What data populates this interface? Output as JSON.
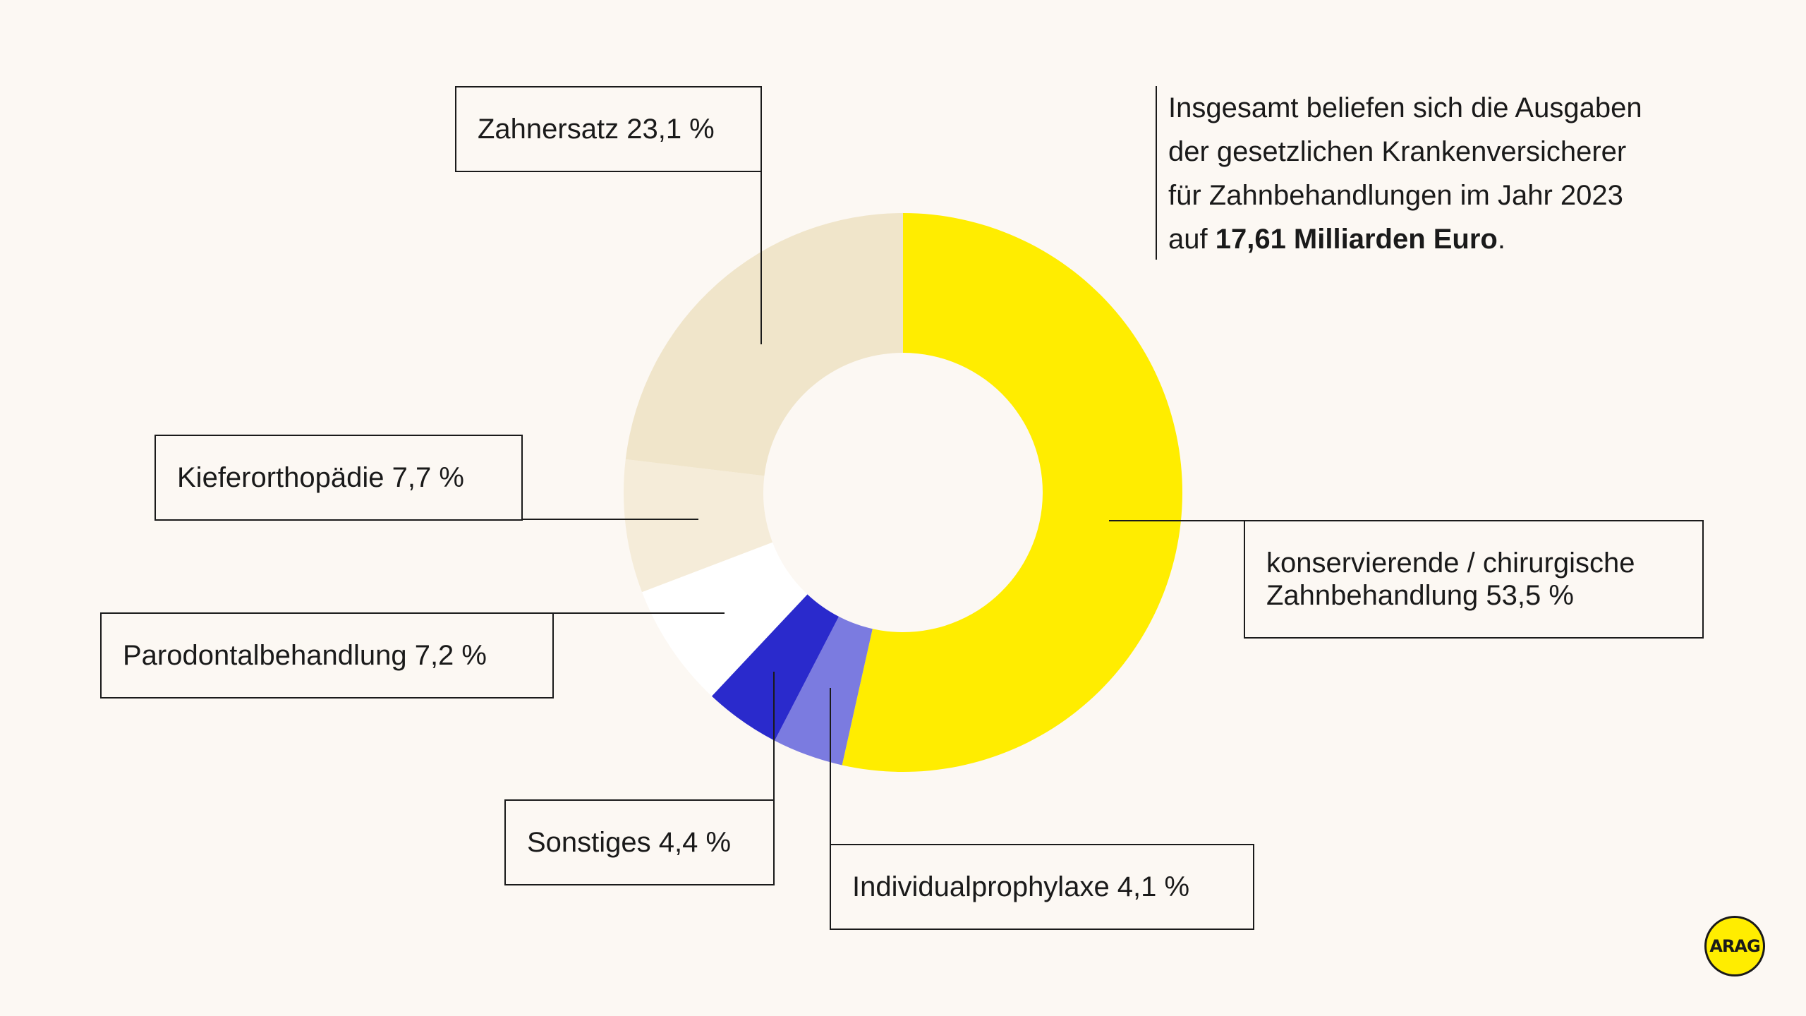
{
  "chart_data": {
    "type": "pie",
    "style": "donut",
    "slices": [
      {
        "label": "konservierende / chirurgische Zahnbehandlung 53,5 %",
        "value": 53.5,
        "color": "#ffed00"
      },
      {
        "label": "Individualprophylaxe 4,1 %",
        "value": 4.1,
        "color": "#7b7be0"
      },
      {
        "label": "Sonstiges 4,4 %",
        "value": 4.4,
        "color": "#2a2acc"
      },
      {
        "label": "Parodontalbehandlung 7,2 %",
        "value": 7.2,
        "color": "#ffffff"
      },
      {
        "label": "Kieferorthopädie 7,7 %",
        "value": 7.7,
        "color": "#f5ecd9"
      },
      {
        "label": "Zahnersatz 23,1 %",
        "value": 23.1,
        "color": "#f0e5ca"
      }
    ]
  },
  "info": {
    "line1": "Insgesamt beliefen sich die Ausgaben",
    "line2": "der gesetzlichen Krankenversicherer",
    "line3": "für Zahnbehandlungen im Jahr 2023",
    "line4_prefix": "auf ",
    "line4_bold": "17,61 Milliarden Euro",
    "line4_suffix": "."
  },
  "logo": {
    "text": "ARAG",
    "color": "#ffed00"
  }
}
